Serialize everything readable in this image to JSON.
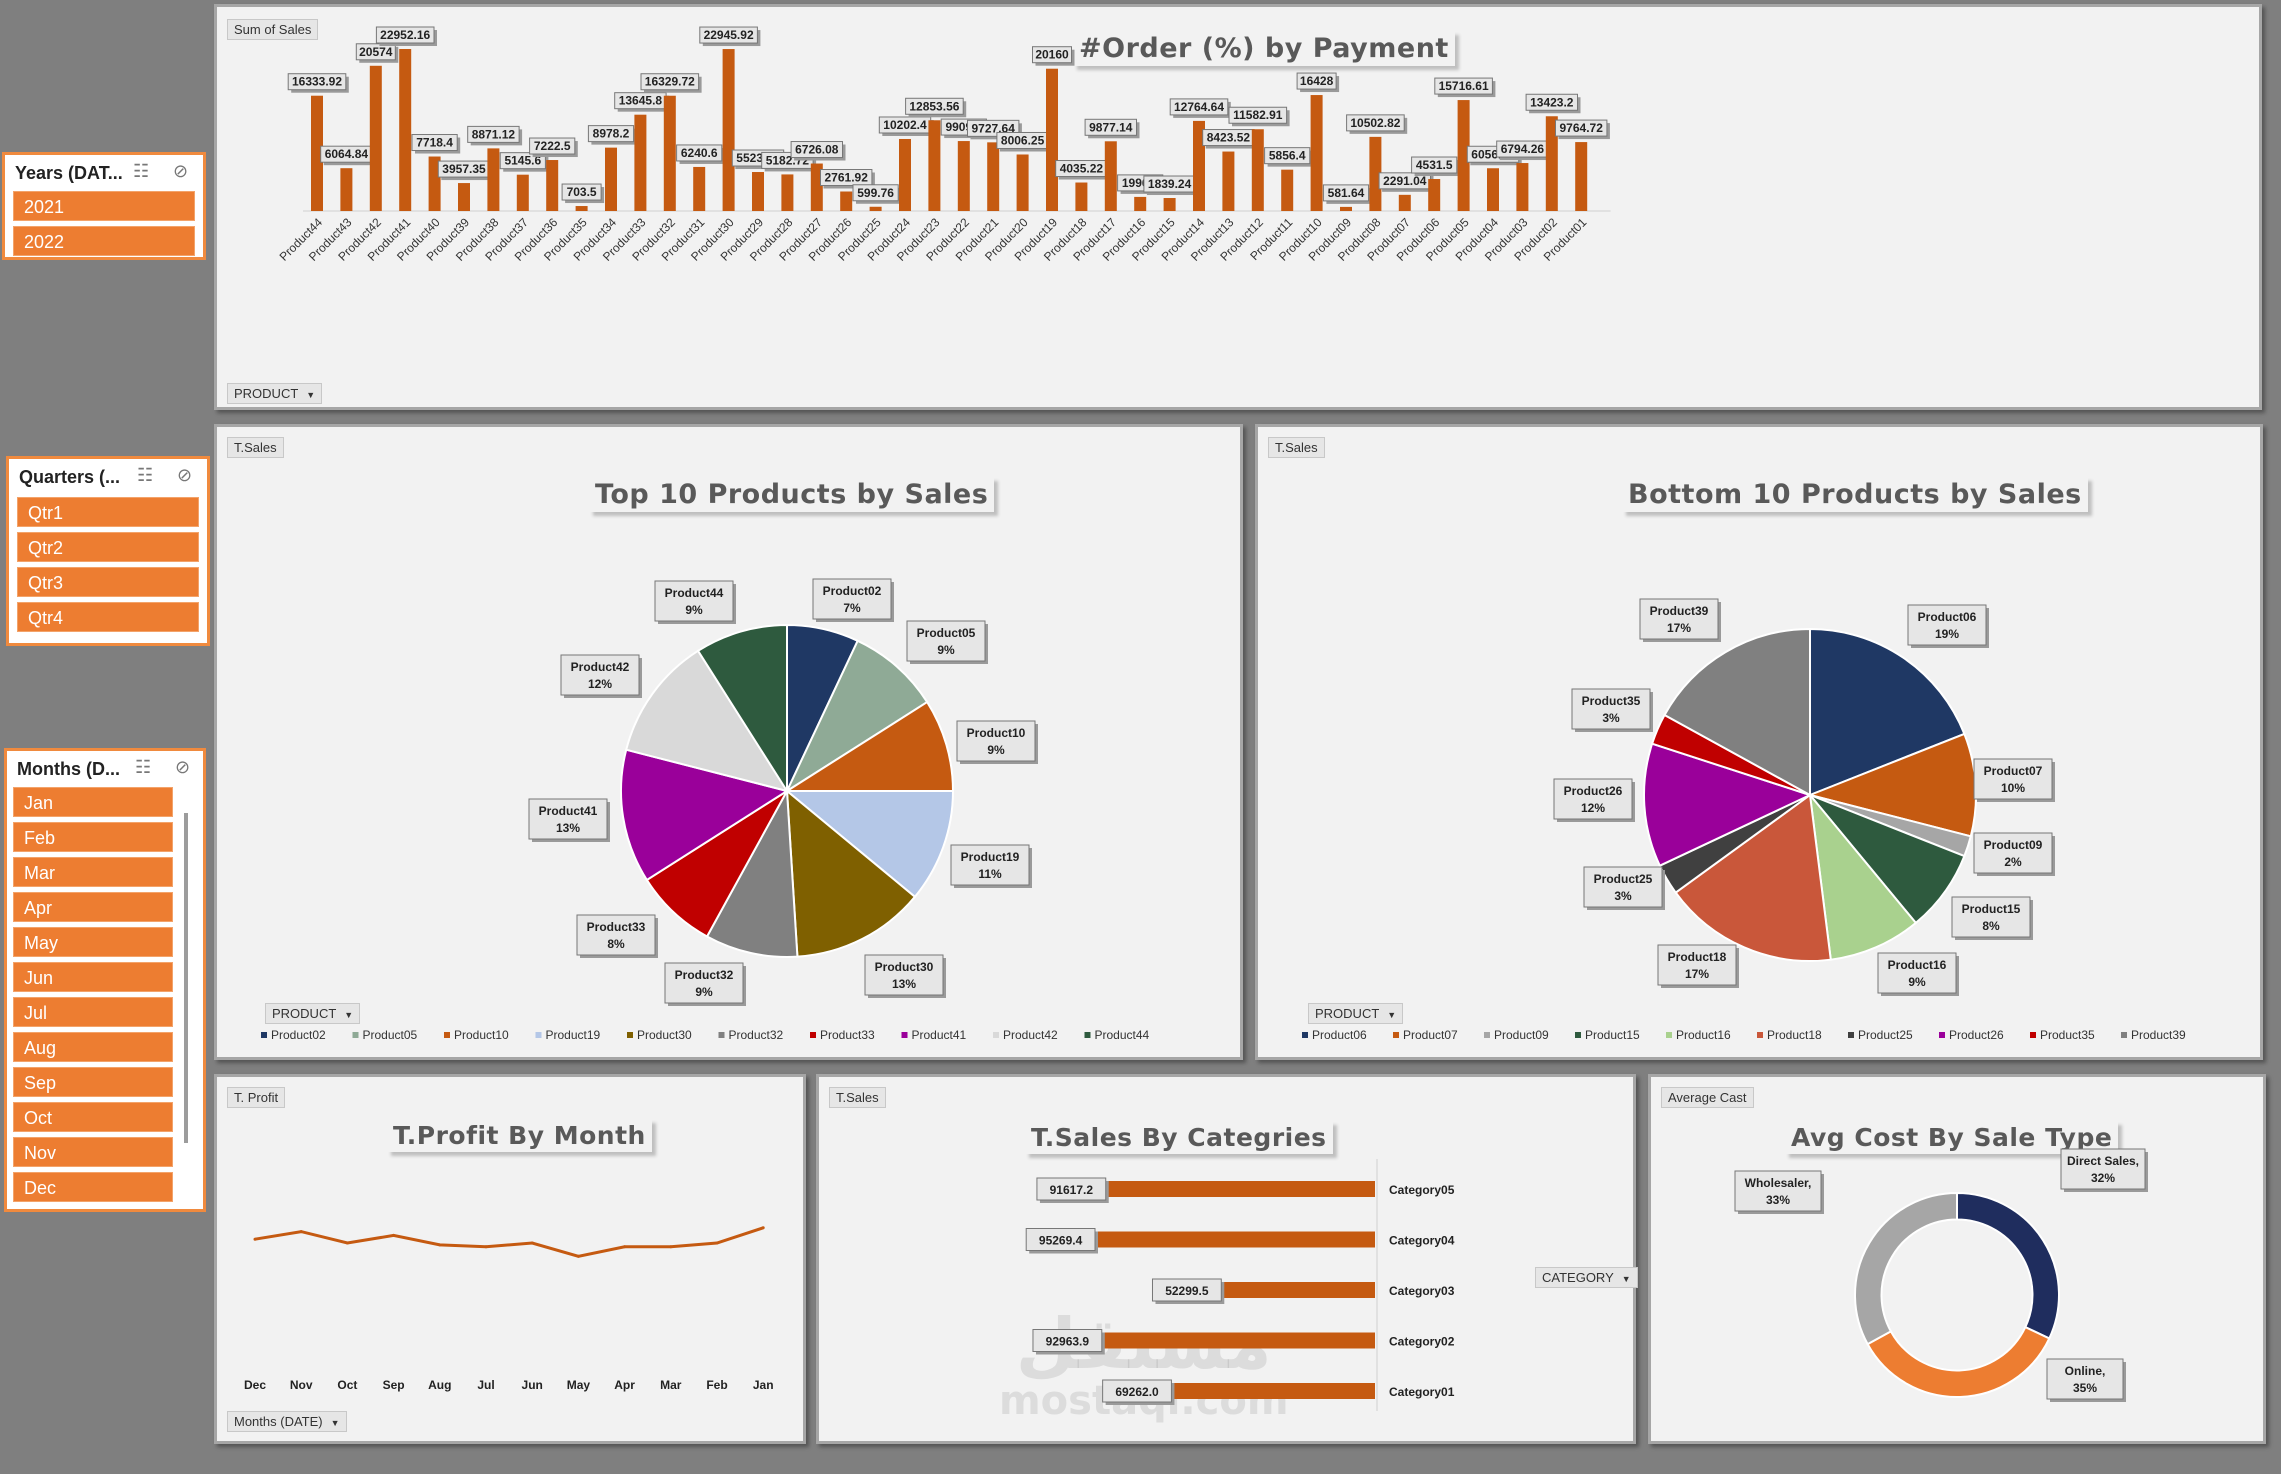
{
  "slicers": {
    "years": {
      "title": "Years (DAT...",
      "items": [
        "2021",
        "2022"
      ]
    },
    "quarters": {
      "title": "Quarters (...",
      "items": [
        "Qtr1",
        "Qtr2",
        "Qtr3",
        "Qtr4"
      ]
    },
    "months": {
      "title": "Months (D...",
      "items": [
        "Jan",
        "Feb",
        "Mar",
        "Apr",
        "May",
        "Jun",
        "Jul",
        "Aug",
        "Sep",
        "Oct",
        "Nov",
        "Dec"
      ]
    }
  },
  "panels": {
    "top": {
      "tag": "Sum of Sales",
      "title": "#Order (%) by Payment",
      "filter": "PRODUCT"
    },
    "top10": {
      "tag": "T.Sales",
      "title": "Top 10 Products by Sales",
      "filter": "PRODUCT"
    },
    "bottom10": {
      "tag": "T.Sales",
      "title": "Bottom 10 Products by Sales",
      "filter": "PRODUCT"
    },
    "profit": {
      "tag": "T. Profit",
      "title": "T.Profit By Month",
      "filter": "Months (DATE)"
    },
    "categories": {
      "tag": "T.Sales",
      "title": "T.Sales By Categries",
      "filter": "CATEGORY"
    },
    "avgcost": {
      "tag": "Average  Cast",
      "title": "Avg Cost By Sale Type"
    }
  },
  "watermark": {
    "line1": "مستقل",
    "line2": "mostaql.com"
  },
  "chart_data": [
    {
      "type": "bar",
      "title": "#Order (%) by Payment",
      "color": "#c55a11",
      "categories": [
        "Product44",
        "Product43",
        "Product42",
        "Product41",
        "Product40",
        "Product39",
        "Product38",
        "Product37",
        "Product36",
        "Product35",
        "Product34",
        "Product33",
        "Product32",
        "Product31",
        "Product30",
        "Product29",
        "Product28",
        "Product27",
        "Product26",
        "Product25",
        "Product24",
        "Product23",
        "Product22",
        "Product21",
        "Product20",
        "Product19",
        "Product18",
        "Product17",
        "Product16",
        "Product15",
        "Product14",
        "Product13",
        "Product12",
        "Product11",
        "Product10",
        "Product09",
        "Product08",
        "Product07",
        "Product06",
        "Product05",
        "Product04",
        "Product03",
        "Product02",
        "Product01"
      ],
      "values": [
        16333.92,
        6064.84,
        20574,
        22952.16,
        7718.4,
        3957.35,
        8871.12,
        5145.6,
        7222.5,
        703.5,
        8978.2,
        13645.8,
        16329.72,
        6240.6,
        22945.92,
        5523.44,
        5182.72,
        6726.08,
        2761.92,
        599.76,
        10202.4,
        12853.56,
        9909.9,
        9727.64,
        8006.25,
        20160,
        4035.22,
        9877.14,
        1996.8,
        1839.24,
        12764.64,
        8423.52,
        11582.91,
        5856.4,
        16428,
        581.64,
        10502.82,
        2291.04,
        4531.5,
        15716.61,
        6056.16,
        6794.26,
        13423.2,
        9764.72
      ],
      "value_labels": [
        "16333.92",
        "6064.84",
        "20574",
        "22952.16",
        "7718.4",
        "3957.35",
        "8871.12",
        "5145.6",
        "7222.5",
        "703.5",
        "8978.2",
        "13645.8",
        "16329.72",
        "6240.6",
        "22945.92",
        "5523.44",
        "5182.72",
        "6726.08",
        "2761.92",
        "599.76",
        "10202.4",
        "12853.56",
        "9909.9",
        "9727.64",
        "8006.25",
        "20160",
        "4035.22",
        "9877.14",
        "1996.8",
        "1839.24",
        "12764.64",
        "8423.52",
        "11582.91",
        "5856.4",
        "16428",
        "581.64",
        "10502.82",
        "2291.04",
        "4531.5",
        "15716.61",
        "6056.16",
        "6794.26",
        "13423.2",
        "9764.72"
      ]
    },
    {
      "type": "pie",
      "title": "Top 10 Products by Sales",
      "slices": [
        {
          "name": "Product02",
          "label": "7%",
          "value": 7,
          "color": "#1f3864"
        },
        {
          "name": "Product05",
          "label": "9%",
          "value": 9,
          "color": "#8faa96"
        },
        {
          "name": "Product10",
          "label": "9%",
          "value": 9,
          "color": "#c55a11"
        },
        {
          "name": "Product19",
          "label": "11%",
          "value": 11,
          "color": "#b4c7e7"
        },
        {
          "name": "Product30",
          "label": "13%",
          "value": 13,
          "color": "#7f6000"
        },
        {
          "name": "Product32",
          "label": "9%",
          "value": 9,
          "color": "#808080"
        },
        {
          "name": "Product33",
          "label": "8%",
          "value": 8,
          "color": "#c00000"
        },
        {
          "name": "Product41",
          "label": "13%",
          "value": 13,
          "color": "#9a009a"
        },
        {
          "name": "Product42",
          "label": "12%",
          "value": 12,
          "color": "#d9d9d9"
        },
        {
          "name": "Product44",
          "label": "9%",
          "value": 9,
          "color": "#2e5a3e"
        }
      ]
    },
    {
      "type": "pie",
      "title": "Bottom 10 Products by Sales",
      "slices": [
        {
          "name": "Product06",
          "label": "19%",
          "value": 19,
          "color": "#1f3864"
        },
        {
          "name": "Product07",
          "label": "10%",
          "value": 10,
          "color": "#c55a11"
        },
        {
          "name": "Product09",
          "label": "2%",
          "value": 2,
          "color": "#a6a6a6"
        },
        {
          "name": "Product15",
          "label": "8%",
          "value": 8,
          "color": "#2e5a3e"
        },
        {
          "name": "Product16",
          "label": "9%",
          "value": 9,
          "color": "#a9d18e"
        },
        {
          "name": "Product18",
          "label": "17%",
          "value": 17,
          "color": "#c9573a"
        },
        {
          "name": "Product25",
          "label": "3%",
          "value": 3,
          "color": "#404040"
        },
        {
          "name": "Product26",
          "label": "12%",
          "value": 12,
          "color": "#9a009a"
        },
        {
          "name": "Product35",
          "label": "3%",
          "value": 3,
          "color": "#c00000"
        },
        {
          "name": "Product39",
          "label": "17%",
          "value": 17,
          "color": "#808080"
        }
      ]
    },
    {
      "type": "line",
      "title": "T.Profit By Month",
      "color": "#c55a11",
      "categories": [
        "Dec",
        "Nov",
        "Oct",
        "Sep",
        "Aug",
        "Jul",
        "Jun",
        "May",
        "Apr",
        "Mar",
        "Feb",
        "Jan"
      ],
      "values": [
        0.62,
        0.66,
        0.6,
        0.64,
        0.59,
        0.58,
        0.6,
        0.53,
        0.58,
        0.58,
        0.6,
        0.68
      ]
    },
    {
      "type": "bar",
      "orientation": "horizontal",
      "title": "T.Sales By Categries",
      "color": "#c55a11",
      "categories": [
        "Category05",
        "Category04",
        "Category03",
        "Category02",
        "Category01"
      ],
      "values": [
        91617.2,
        95269.4,
        52299.5,
        92963.9,
        69262.0
      ],
      "value_labels": [
        "91617.2",
        "95269.4",
        "52299.5",
        "92963.9",
        "69262.0"
      ]
    },
    {
      "type": "pie",
      "subtype": "doughnut",
      "title": "Avg Cost By Sale Type",
      "slices": [
        {
          "name": "Direct Sales,",
          "label": "32%",
          "value": 32,
          "color": "#1f2d5e"
        },
        {
          "name": "Online,",
          "label": "35%",
          "value": 35,
          "color": "#ed7d31"
        },
        {
          "name": "Wholesaler,",
          "label": "33%",
          "value": 33,
          "color": "#a6a6a6"
        }
      ]
    }
  ]
}
